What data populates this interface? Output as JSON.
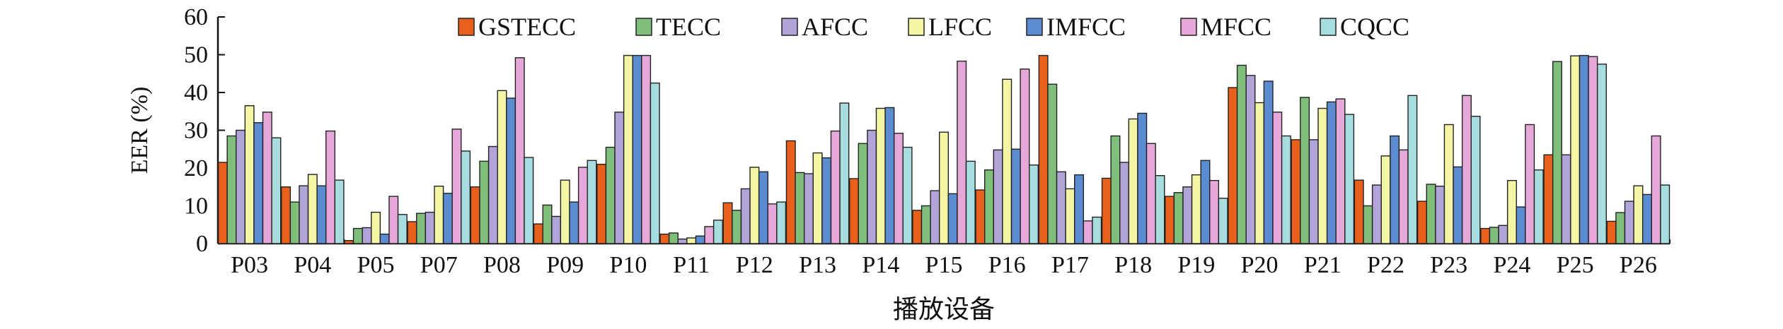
{
  "chart_data": {
    "type": "bar",
    "title": "",
    "xlabel": "播放设备",
    "ylabel": "EER (%)",
    "ylim": [
      0,
      60
    ],
    "yticks": [
      0,
      10,
      20,
      30,
      40,
      50,
      60
    ],
    "legend_position": "top-center",
    "categories": [
      "P03",
      "P04",
      "P05",
      "P07",
      "P08",
      "P09",
      "P10",
      "P11",
      "P12",
      "P13",
      "P14",
      "P15",
      "P16",
      "P17",
      "P18",
      "P19",
      "P20",
      "P21",
      "P22",
      "P23",
      "P24",
      "P25",
      "P26"
    ],
    "series": [
      {
        "name": "GSTECC",
        "color": "#e8601c",
        "values": [
          21.5,
          15,
          0.8,
          5.8,
          15,
          5.2,
          21,
          2.5,
          10.8,
          27.2,
          17.2,
          8.8,
          14.2,
          49.8,
          17.3,
          12.5,
          41.3,
          27.5,
          16.8,
          11.2,
          4,
          23.5,
          5.9
        ]
      },
      {
        "name": "TECC",
        "color": "#7fbf7b",
        "values": [
          28.5,
          11,
          4,
          8,
          21.8,
          10.2,
          25.5,
          2.8,
          8.8,
          18.8,
          26.5,
          10,
          19.5,
          42.2,
          28.5,
          13.5,
          47.2,
          38.7,
          10,
          15.7,
          4.3,
          48.2,
          8.2
        ]
      },
      {
        "name": "AFCC",
        "color": "#b2a3d8",
        "values": [
          30,
          15.3,
          4.2,
          8.3,
          25.7,
          7.2,
          34.8,
          1.2,
          14.5,
          18.5,
          30,
          14,
          24.8,
          19,
          21.5,
          15,
          44.5,
          27.5,
          15.5,
          15.2,
          4.8,
          23.5,
          11.2
        ]
      },
      {
        "name": "LFCC",
        "color": "#f5f5a6",
        "values": [
          36.5,
          18.3,
          8.3,
          15.2,
          40.5,
          16.8,
          49.8,
          1.5,
          20.2,
          24,
          35.8,
          29.5,
          43.5,
          14.5,
          33,
          18.2,
          37.3,
          35.8,
          23.2,
          31.5,
          16.7,
          49.7,
          15.3
        ]
      },
      {
        "name": "IMFCC",
        "color": "#5b8bd0",
        "values": [
          32,
          15.3,
          2.5,
          13.3,
          38.5,
          11,
          49.8,
          2,
          19,
          22.7,
          36,
          13.2,
          25,
          18.2,
          34.5,
          22,
          43,
          37.5,
          28.5,
          20.3,
          9.7,
          49.8,
          13
        ]
      },
      {
        "name": "MFCC",
        "color": "#e6a8d8",
        "values": [
          34.8,
          29.8,
          12.5,
          30.3,
          49.2,
          20.2,
          49.8,
          4.5,
          10.5,
          29.8,
          29.2,
          48.3,
          46.2,
          6,
          26.5,
          16.7,
          34.8,
          38.3,
          24.8,
          39.2,
          31.5,
          49.5,
          28.5
        ]
      },
      {
        "name": "CQCC",
        "color": "#a8dde0",
        "values": [
          28,
          16.8,
          7.7,
          24.5,
          22.8,
          22,
          42.5,
          6.2,
          11,
          37.2,
          25.5,
          21.8,
          20.8,
          7,
          18,
          12,
          28.5,
          34.2,
          39.2,
          33.7,
          19.5,
          47.5,
          15.5
        ]
      }
    ]
  }
}
